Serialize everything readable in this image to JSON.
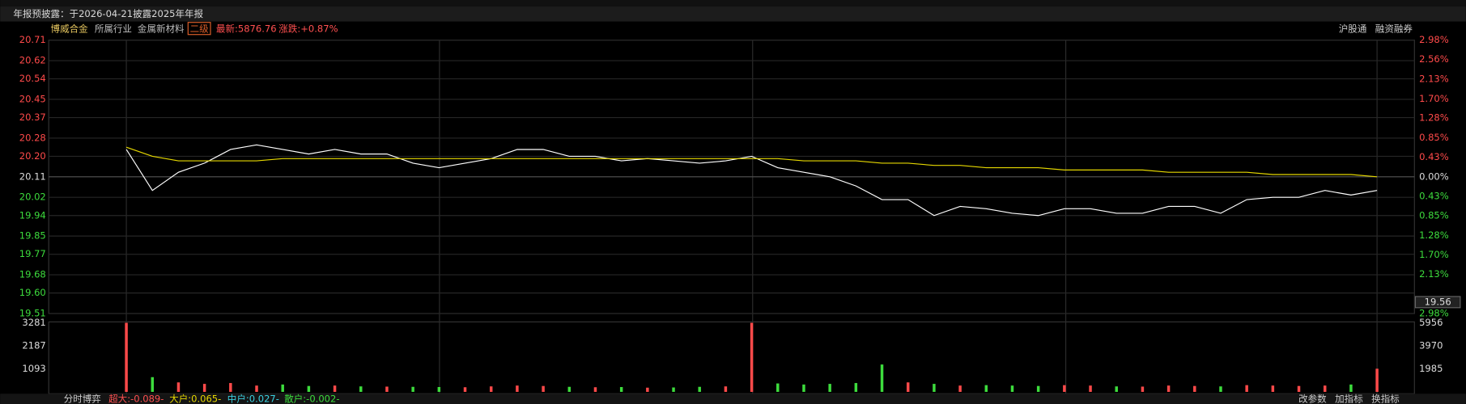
{
  "header": {
    "notice": "年报预披露：于2026-04-21披露2025年年报",
    "stock": "博威合金",
    "industry_label": "所属行业",
    "industry": "金属新材料",
    "level": "二级",
    "latest": "最新:5876.76",
    "change": "涨跌:+0.87%",
    "tag1": "沪股通",
    "tag2": "融资融券"
  },
  "footer": {
    "panel": "分时博弈",
    "super": "超大:-0.089-",
    "large": "大户:0.065-",
    "medium": "中户:0.027-",
    "small": "散户:-0.002-",
    "btn1": "改参数",
    "btn2": "加指标",
    "btn3": "换指标"
  },
  "chart_data": [
    {
      "type": "line",
      "ylim": [
        19.51,
        20.71
      ],
      "yticks": [
        20.71,
        20.62,
        20.54,
        20.45,
        20.37,
        20.28,
        {
          "value": 20.2,
          "label": "20.20"
        },
        20.11,
        20.02,
        19.94,
        19.85,
        19.77,
        19.68,
        {
          "value": 19.6,
          "label": "19.60"
        },
        19.51
      ],
      "y2lim": [
        -2.98,
        2.98
      ],
      "y2ticks": [
        {
          "value": 2.98,
          "label": "2.98%"
        },
        {
          "value": 2.56,
          "label": "2.56%"
        },
        {
          "value": 2.13,
          "label": "2.13%"
        },
        {
          "value": 1.7,
          "label": "1.70%"
        },
        {
          "value": 1.28,
          "label": "1.28%"
        },
        {
          "value": 0.85,
          "label": "0.85%"
        },
        {
          "value": 0.43,
          "label": "0.43%"
        },
        {
          "value": 0,
          "label": "0.00%"
        },
        {
          "value": -0.43,
          "label": "0.43%"
        },
        {
          "value": -0.85,
          "label": "0.85%"
        },
        {
          "value": -1.28,
          "label": "1.28%"
        },
        {
          "value": -1.7,
          "label": "1.70%"
        },
        {
          "value": -2.13,
          "label": "2.13%"
        },
        {
          "value": -2.98,
          "label": "2.98%"
        }
      ],
      "cursor_value": 19.56,
      "grid": true,
      "up_color": "#ff4a4a",
      "down_color": "#3ddc3d",
      "series": [
        {
          "color": "#ffffff",
          "values": [
            20.23,
            20.05,
            20.13,
            20.17,
            20.23,
            20.25,
            20.23,
            20.21,
            20.23,
            20.21,
            20.21,
            20.17,
            20.15,
            20.17,
            20.19,
            20.23,
            20.23,
            20.2,
            20.2,
            20.18,
            20.19,
            20.18,
            20.17,
            20.18,
            20.2,
            20.15,
            20.13,
            20.11,
            20.07,
            20.01,
            20.01,
            19.94,
            19.98,
            19.97,
            19.95,
            19.94,
            19.97,
            19.97,
            19.95,
            19.95,
            19.98,
            19.98,
            19.95,
            20.01,
            20.02,
            20.02,
            20.05,
            20.03,
            20.05
          ]
        },
        {
          "color": "#e6d800",
          "values": [
            20.24,
            20.2,
            20.18,
            20.18,
            20.18,
            20.18,
            20.19,
            20.19,
            20.19,
            20.19,
            20.19,
            20.19,
            20.19,
            20.19,
            20.19,
            20.19,
            20.19,
            20.19,
            20.19,
            20.19,
            20.19,
            20.19,
            20.19,
            20.19,
            20.19,
            20.19,
            20.18,
            20.18,
            20.18,
            20.17,
            20.17,
            20.16,
            20.16,
            20.15,
            20.15,
            20.15,
            20.14,
            20.14,
            20.14,
            20.14,
            20.13,
            20.13,
            20.13,
            20.13,
            20.12,
            20.12,
            20.12,
            20.12,
            20.11
          ]
        }
      ]
    },
    {
      "type": "bar",
      "ylim": [
        0,
        3281
      ],
      "yticks": [
        1093,
        2187,
        3281
      ],
      "y2lim": [
        0,
        5956
      ],
      "y2ticks": [
        1985,
        3970,
        5956
      ],
      "up_color": "#ff4a4a",
      "down_color": "#3ddc3d",
      "values": [
        3281,
        700,
        450,
        380,
        420,
        300,
        350,
        280,
        300,
        260,
        250,
        240,
        230,
        220,
        260,
        300,
        280,
        240,
        220,
        230,
        200,
        210,
        240,
        260,
        3281,
        400,
        350,
        380,
        420,
        1300,
        450,
        380,
        300,
        320,
        300,
        280,
        320,
        300,
        260,
        250,
        300,
        280,
        260,
        320,
        300,
        280,
        300,
        350,
        1100
      ]
    }
  ]
}
